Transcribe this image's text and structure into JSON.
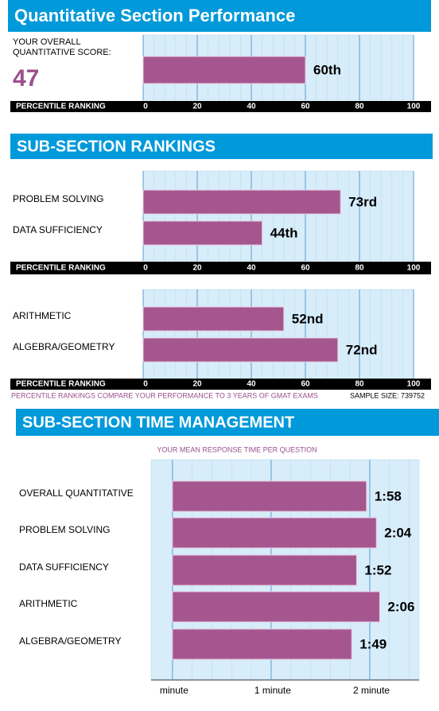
{
  "chart_data": [
    {
      "type": "bar",
      "title": "Quantitative Section Performance",
      "score_label": "YOUR OVERALL QUANTITATIVE SCORE:",
      "score": 47,
      "categories": [
        null
      ],
      "values": [
        60
      ],
      "value_labels": [
        "60th"
      ],
      "color": "#a5568f",
      "xlabel": "PERCENTILE RANKING",
      "xlim": [
        0,
        100
      ],
      "xticks": [
        0,
        20,
        40,
        60,
        80,
        100
      ],
      "grid": true
    },
    {
      "type": "bar",
      "title": "SUB-SECTION RANKINGS",
      "categories": [
        "PROBLEM SOLVING",
        "DATA SUFFICIENCY"
      ],
      "values": [
        73,
        44
      ],
      "value_labels": [
        "73rd",
        "44th"
      ],
      "color": "#a5568f",
      "xlabel": "PERCENTILE RANKING",
      "xlim": [
        0,
        100
      ],
      "xticks": [
        0,
        20,
        40,
        60,
        80,
        100
      ],
      "grid": true
    },
    {
      "type": "bar",
      "categories": [
        "ARITHMETIC",
        "ALGEBRA/GEOMETRY"
      ],
      "values": [
        52,
        72
      ],
      "value_labels": [
        "52nd",
        "72nd"
      ],
      "color": "#a5568f",
      "xlabel": "PERCENTILE RANKING",
      "xlim": [
        0,
        100
      ],
      "xticks": [
        0,
        20,
        40,
        60,
        80,
        100
      ],
      "grid": true,
      "footnote": "PERCENTILE RANKINGS COMPARE YOUR PERFORMANCE TO 3 YEARS OF GMAT EXAMS",
      "sample_size": "SAMPLE SIZE: 739752"
    },
    {
      "type": "bar",
      "title": "SUB-SECTION TIME MANAGEMENT",
      "subtitle": "YOUR MEAN RESPONSE TIME PER QUESTION",
      "categories": [
        "OVERALL QUANTITATIVE",
        "PROBLEM SOLVING",
        "DATA SUFFICIENCY",
        "ARITHMETIC",
        "ALGEBRA/GEOMETRY"
      ],
      "values": [
        118,
        124,
        112,
        126,
        109
      ],
      "value_labels": [
        "1:58",
        "2:04",
        "1:52",
        "2:06",
        "1:49"
      ],
      "color": "#a5568f",
      "xlim": [
        -13,
        150
      ],
      "xticks": [
        {
          "value": 0,
          "label": "minute"
        },
        {
          "value": 60,
          "label": "1 minute"
        },
        {
          "value": 120,
          "label": "2 minute"
        }
      ],
      "grid": true
    }
  ]
}
